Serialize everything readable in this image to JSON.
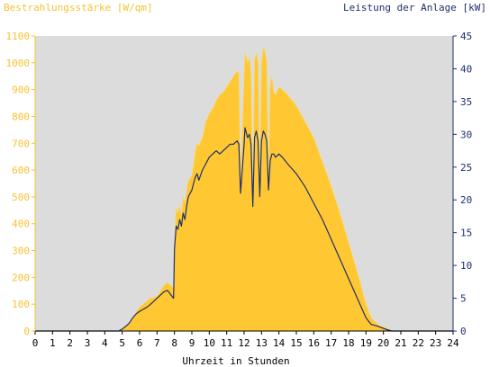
{
  "chart_data": {
    "type": "area",
    "left_axis_title": "Bestrahlungsstärke [W/qm]",
    "right_axis_title": "Leistung der Anlage [kW]",
    "xlabel": "Uhrzeit in Stunden",
    "x_ticks": [
      "0",
      "1",
      "2",
      "3",
      "4",
      "5",
      "6",
      "7",
      "8",
      "9",
      "10",
      "11",
      "12",
      "13",
      "14",
      "15",
      "16",
      "17",
      "18",
      "19",
      "20",
      "21",
      "22",
      "23",
      "24"
    ],
    "left_ticks": [
      "0",
      "100",
      "200",
      "300",
      "400",
      "500",
      "600",
      "700",
      "800",
      "900",
      "1000",
      "1100"
    ],
    "right_ticks": [
      "0",
      "5",
      "10",
      "15",
      "20",
      "25",
      "30",
      "35",
      "40",
      "45"
    ],
    "xlim": [
      0,
      24
    ],
    "ylim_left": [
      0,
      1100
    ],
    "ylim_right": [
      0,
      45
    ],
    "grid": false,
    "colors": {
      "plot_background": "#dcdcdc",
      "irradiance_fill": "#ffc832",
      "irradiance_edge": "#ffd966",
      "power_line": "#1f2f6e",
      "left_axis": "#f5c330",
      "right_axis": "#1f2f6e"
    },
    "series": [
      {
        "key": "irradiance",
        "axis": "left",
        "x": [
          0,
          4.8,
          5.0,
          5.2,
          5.4,
          5.6,
          5.8,
          6.0,
          6.2,
          6.4,
          6.6,
          6.8,
          7.0,
          7.2,
          7.4,
          7.6,
          7.8,
          7.95,
          8.0,
          8.1,
          8.2,
          8.3,
          8.4,
          8.5,
          8.6,
          8.7,
          8.8,
          9.0,
          9.1,
          9.2,
          9.3,
          9.4,
          9.6,
          9.8,
          10.0,
          10.2,
          10.4,
          10.6,
          10.8,
          11.0,
          11.2,
          11.4,
          11.6,
          11.7,
          11.8,
          12.0,
          12.05,
          12.2,
          12.3,
          12.4,
          12.5,
          12.6,
          12.7,
          12.8,
          12.9,
          13.0,
          13.1,
          13.2,
          13.3,
          13.4,
          13.5,
          13.6,
          13.7,
          13.8,
          14.0,
          14.2,
          14.5,
          15.0,
          15.5,
          16.0,
          16.5,
          17.0,
          17.5,
          18.0,
          18.5,
          19.0,
          19.3,
          19.6,
          19.8,
          20.0,
          20.2,
          20.5,
          24
        ],
        "values": [
          0,
          0,
          10,
          20,
          30,
          50,
          70,
          90,
          100,
          110,
          120,
          125,
          130,
          150,
          170,
          180,
          170,
          160,
          330,
          460,
          440,
          470,
          430,
          500,
          480,
          520,
          560,
          580,
          620,
          670,
          700,
          690,
          720,
          780,
          810,
          830,
          860,
          880,
          890,
          910,
          930,
          950,
          970,
          960,
          540,
          950,
          1040,
          1000,
          1020,
          960,
          500,
          1010,
          1040,
          1000,
          580,
          1000,
          1060,
          1040,
          1000,
          560,
          920,
          950,
          890,
          880,
          910,
          900,
          880,
          840,
          780,
          720,
          630,
          540,
          440,
          330,
          220,
          100,
          50,
          30,
          20,
          15,
          10,
          0,
          0
        ]
      },
      {
        "key": "power",
        "axis": "right",
        "x": [
          0,
          4.8,
          5.0,
          5.2,
          5.4,
          5.6,
          5.8,
          6.0,
          6.2,
          6.4,
          6.6,
          6.8,
          7.0,
          7.2,
          7.4,
          7.6,
          7.8,
          7.95,
          8.0,
          8.1,
          8.2,
          8.3,
          8.4,
          8.5,
          8.6,
          8.7,
          8.8,
          9.0,
          9.1,
          9.2,
          9.3,
          9.4,
          9.6,
          9.8,
          10.0,
          10.2,
          10.4,
          10.6,
          10.8,
          11.0,
          11.2,
          11.4,
          11.6,
          11.7,
          11.8,
          12.0,
          12.05,
          12.2,
          12.3,
          12.4,
          12.5,
          12.6,
          12.7,
          12.8,
          12.9,
          13.0,
          13.1,
          13.2,
          13.3,
          13.4,
          13.5,
          13.6,
          13.7,
          13.8,
          14.0,
          14.2,
          14.5,
          15.0,
          15.5,
          16.0,
          16.5,
          17.0,
          17.5,
          18.0,
          18.5,
          19.0,
          19.3,
          19.6,
          19.8,
          20.0,
          20.2,
          20.5,
          24
        ],
        "values": [
          0,
          0,
          0.3,
          0.7,
          1.2,
          2.0,
          2.6,
          3.0,
          3.3,
          3.6,
          4.0,
          4.5,
          5.0,
          5.5,
          6.0,
          6.2,
          5.5,
          5.0,
          12.5,
          16.0,
          15.5,
          17.0,
          16.0,
          18.0,
          17.0,
          19.0,
          20.5,
          21.5,
          22.5,
          23.5,
          24.0,
          23.0,
          24.5,
          25.5,
          26.5,
          27.0,
          27.5,
          27.0,
          27.5,
          28.0,
          28.5,
          28.5,
          29.0,
          28.5,
          21.0,
          28.5,
          31.0,
          29.5,
          30.0,
          28.5,
          19.0,
          29.5,
          30.5,
          29.0,
          20.5,
          29.0,
          30.5,
          30.0,
          29.0,
          21.5,
          26.0,
          27.0,
          27.0,
          26.5,
          27.0,
          26.5,
          25.5,
          24.0,
          22.0,
          19.5,
          17.0,
          14.0,
          11.0,
          8.0,
          5.0,
          2.0,
          1.0,
          0.8,
          0.6,
          0.4,
          0.2,
          0,
          0
        ]
      }
    ]
  }
}
